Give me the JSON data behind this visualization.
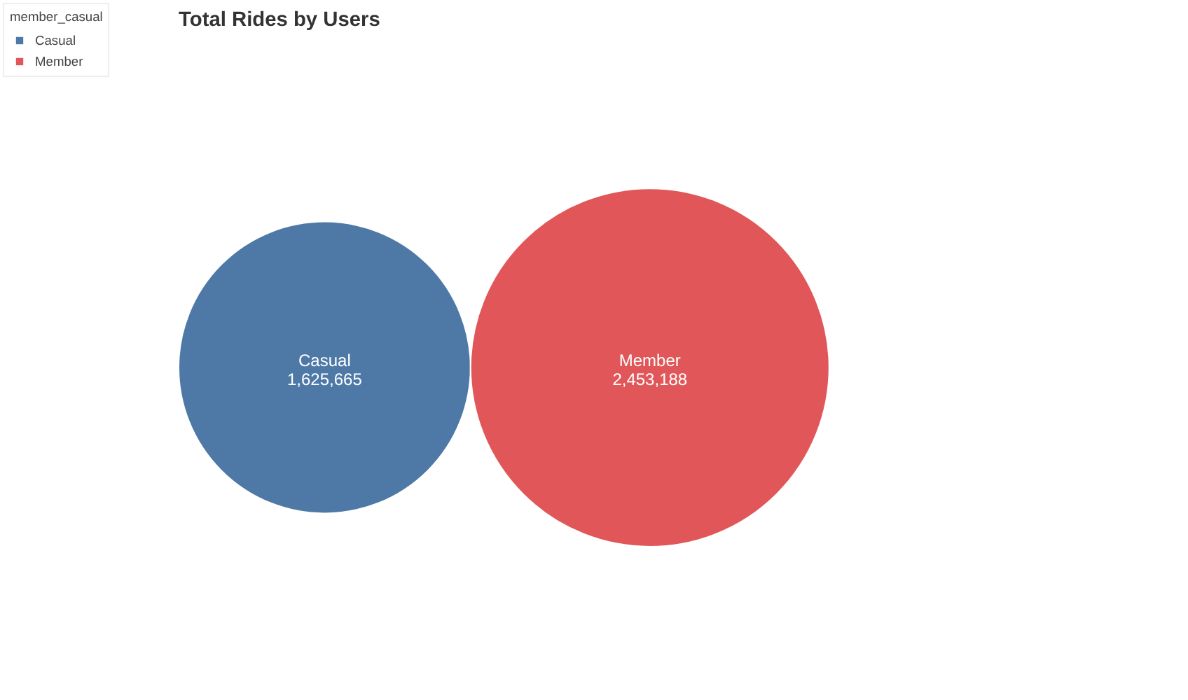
{
  "chart_data": {
    "type": "other",
    "title": "Total Rides by Users",
    "legend_title": "member_casual",
    "legend": "top left",
    "series": [
      {
        "name": "Casual",
        "color": "#4e79a7",
        "values": [
          1625665
        ],
        "value_labels": [
          "1,625,665"
        ]
      },
      {
        "name": "Member",
        "color": "#e15759",
        "values": [
          2453188
        ],
        "value_labels": [
          "2,453,188"
        ]
      }
    ]
  }
}
